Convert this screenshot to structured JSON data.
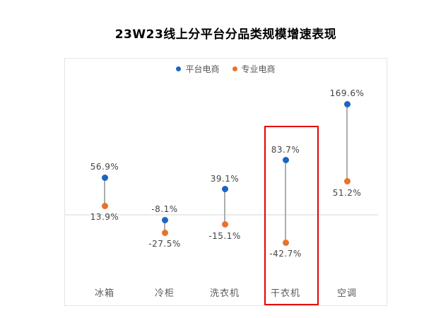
{
  "chart_data": {
    "type": "scatter",
    "subtype": "dumbbell-dot-plot",
    "title": "23W23线上分平台分品类规模增速表现",
    "categories": [
      "冰箱",
      "冷柜",
      "洗衣机",
      "干衣机",
      "空调"
    ],
    "series": [
      {
        "name": "平台电商",
        "color": "#1a65c4",
        "values": [
          56.9,
          -8.1,
          39.1,
          83.7,
          169.6
        ],
        "labels": [
          "56.9%",
          "-8.1%",
          "39.1%",
          "83.7%",
          "169.6%"
        ],
        "label_position": "above"
      },
      {
        "name": "专业电商",
        "color": "#e8732a",
        "values": [
          13.9,
          -27.5,
          -15.1,
          -42.7,
          51.2
        ],
        "labels": [
          "13.9%",
          "-27.5%",
          "-15.1%",
          "-42.7%",
          "51.2%"
        ],
        "label_position": "below"
      }
    ],
    "unit": "%",
    "ylim": [
      -60,
      185
    ],
    "zero_line": true,
    "grid": false,
    "legend_position": "top",
    "connector_color": "#adadad",
    "highlight": {
      "category": "干衣机",
      "box_color": "#e60000"
    }
  }
}
